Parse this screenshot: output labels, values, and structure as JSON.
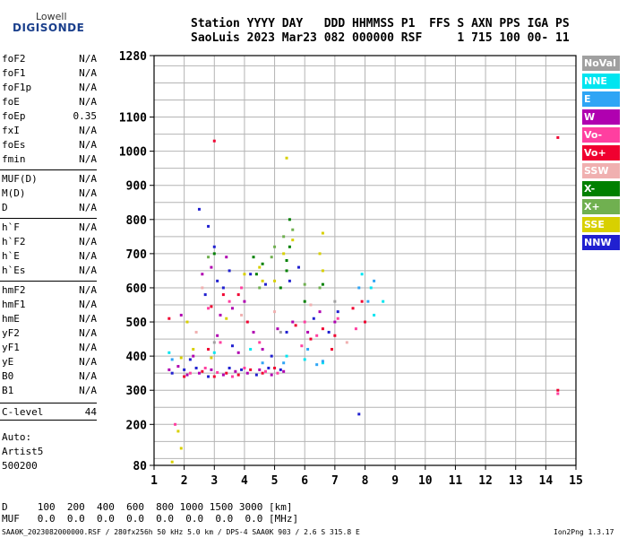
{
  "logo": {
    "line1": "Lowell",
    "line2": "DIGISONDE"
  },
  "header": {
    "line1": "Station YYYY DAY   DDD HHMMSS P1  FFS S AXN PPS IGA PS",
    "line2": "SaoLuis 2023 Mar23 082 000000 RSF     1 715 100 00- 11"
  },
  "params": [
    {
      "label": "foF2",
      "value": "N/A"
    },
    {
      "label": "foF1",
      "value": "N/A"
    },
    {
      "label": "foF1p",
      "value": "N/A"
    },
    {
      "label": "foE",
      "value": "N/A"
    },
    {
      "label": "foEp",
      "value": "0.35"
    },
    {
      "label": "fxI",
      "value": "N/A"
    },
    {
      "label": "foEs",
      "value": "N/A"
    },
    {
      "label": "fmin",
      "value": "N/A"
    },
    {
      "label": "MUF(D)",
      "value": "N/A"
    },
    {
      "label": "M(D)",
      "value": "N/A"
    },
    {
      "label": "D",
      "value": "N/A"
    },
    {
      "label": "h`F",
      "value": "N/A"
    },
    {
      "label": "h`F2",
      "value": "N/A"
    },
    {
      "label": "h`E",
      "value": "N/A"
    },
    {
      "label": "h`Es",
      "value": "N/A"
    },
    {
      "label": "hmF2",
      "value": "N/A"
    },
    {
      "label": "hmF1",
      "value": "N/A"
    },
    {
      "label": "hmE",
      "value": "N/A"
    },
    {
      "label": "yF2",
      "value": "N/A"
    },
    {
      "label": "yF1",
      "value": "N/A"
    },
    {
      "label": "yE",
      "value": "N/A"
    },
    {
      "label": "B0",
      "value": "N/A"
    },
    {
      "label": "B1",
      "value": "N/A"
    },
    {
      "label": "C-level",
      "value": "44"
    }
  ],
  "autoscale": {
    "line1": "Auto:",
    "line2": "Artist5",
    "line3": "500200"
  },
  "legend": [
    {
      "label": "NoVal",
      "color": "#a0a0a0"
    },
    {
      "label": "NNE",
      "color": "#00e5f0"
    },
    {
      "label": "E",
      "color": "#2fa5f5"
    },
    {
      "label": "W",
      "color": "#b000b0"
    },
    {
      "label": "Vo-",
      "color": "#ff3fa0"
    },
    {
      "label": "Vo+",
      "color": "#f00030"
    },
    {
      "label": "SSW",
      "color": "#f0b0b0"
    },
    {
      "label": "X-",
      "color": "#008000"
    },
    {
      "label": "X+",
      "color": "#70b050"
    },
    {
      "label": "SSE",
      "color": "#d8d000"
    },
    {
      "label": "NNW",
      "color": "#2020d0"
    }
  ],
  "footer": {
    "d_row": "D     100  200  400  600  800 1000 1500 3000 [km]",
    "muf_row": "MUF   0.0  0.0  0.0  0.0  0.0  0.0  0.0  0.0 [MHz]",
    "file_info": "SAA0K_2023082000000.RSF / 280fx256h 50 kHz 5.0 km / DPS-4 SAA0K 903 / 2.6 S 315.8 E",
    "version": "Ion2Png 1.3.17"
  },
  "chart_data": {
    "type": "scatter",
    "title": "",
    "xlabel": "",
    "ylabel": "",
    "xlim": [
      1,
      15
    ],
    "ylim": [
      80,
      1280
    ],
    "x_ticks": [
      1,
      2,
      3,
      4,
      5,
      6,
      7,
      8,
      9,
      10,
      11,
      12,
      13,
      14,
      15
    ],
    "y_ticks": [
      80,
      200,
      300,
      400,
      500,
      600,
      700,
      800,
      900,
      1000,
      1100,
      1280
    ],
    "grid": true,
    "legend_position": "right",
    "series": [
      {
        "color": "#b000b0",
        "points": [
          [
            1.5,
            360
          ],
          [
            1.8,
            370
          ],
          [
            2.1,
            345
          ],
          [
            2.5,
            350
          ],
          [
            2.9,
            360
          ],
          [
            3.3,
            345
          ],
          [
            3.7,
            355
          ],
          [
            4.1,
            350
          ],
          [
            4.5,
            360
          ],
          [
            4.9,
            345
          ],
          [
            5.3,
            355
          ],
          [
            3.2,
            520
          ],
          [
            3.6,
            540
          ],
          [
            4.0,
            560
          ],
          [
            2.6,
            640
          ],
          [
            2.9,
            660
          ],
          [
            3.4,
            690
          ],
          [
            5.1,
            480
          ],
          [
            5.6,
            500
          ],
          [
            6.1,
            470
          ],
          [
            6.5,
            530
          ],
          [
            7.0,
            500
          ],
          [
            2.3,
            400
          ],
          [
            3.8,
            410
          ],
          [
            4.6,
            420
          ],
          [
            3.1,
            460
          ],
          [
            4.3,
            470
          ],
          [
            1.9,
            520
          ]
        ]
      },
      {
        "color": "#2020d0",
        "points": [
          [
            1.6,
            350
          ],
          [
            2.0,
            360
          ],
          [
            2.4,
            365
          ],
          [
            2.8,
            340
          ],
          [
            3.5,
            365
          ],
          [
            3.9,
            360
          ],
          [
            4.4,
            345
          ],
          [
            4.8,
            365
          ],
          [
            5.2,
            360
          ],
          [
            2.7,
            580
          ],
          [
            3.3,
            600
          ],
          [
            3.0,
            720
          ],
          [
            2.8,
            780
          ],
          [
            3.1,
            620
          ],
          [
            4.2,
            640
          ],
          [
            4.7,
            610
          ],
          [
            5.5,
            620
          ],
          [
            5.8,
            660
          ],
          [
            6.3,
            510
          ],
          [
            6.8,
            470
          ],
          [
            7.1,
            530
          ],
          [
            7.8,
            230
          ],
          [
            2.2,
            390
          ],
          [
            3.6,
            430
          ],
          [
            4.9,
            400
          ],
          [
            5.4,
            470
          ],
          [
            2.5,
            830
          ],
          [
            3.5,
            650
          ]
        ]
      },
      {
        "color": "#f00030",
        "points": [
          [
            2.0,
            340
          ],
          [
            2.6,
            355
          ],
          [
            3.0,
            340
          ],
          [
            3.4,
            350
          ],
          [
            3.8,
            345
          ],
          [
            4.2,
            360
          ],
          [
            4.6,
            350
          ],
          [
            5.0,
            365
          ],
          [
            3.3,
            580
          ],
          [
            2.9,
            545
          ],
          [
            3.8,
            580
          ],
          [
            5.7,
            490
          ],
          [
            6.2,
            450
          ],
          [
            6.6,
            480
          ],
          [
            7.0,
            460
          ],
          [
            7.6,
            540
          ],
          [
            7.9,
            560
          ],
          [
            8.0,
            500
          ],
          [
            14.4,
            1040
          ],
          [
            14.4,
            300
          ],
          [
            1.5,
            510
          ],
          [
            4.1,
            500
          ],
          [
            2.8,
            420
          ],
          [
            3.0,
            1030
          ],
          [
            6.9,
            420
          ]
        ]
      },
      {
        "color": "#ff3fa0",
        "points": [
          [
            2.2,
            350
          ],
          [
            2.7,
            365
          ],
          [
            3.1,
            352
          ],
          [
            3.6,
            340
          ],
          [
            4.0,
            365
          ],
          [
            4.7,
            355
          ],
          [
            5.1,
            350
          ],
          [
            2.8,
            540
          ],
          [
            3.5,
            560
          ],
          [
            3.9,
            600
          ],
          [
            6.0,
            500
          ],
          [
            6.4,
            460
          ],
          [
            7.1,
            510
          ],
          [
            7.7,
            480
          ],
          [
            1.7,
            200
          ],
          [
            14.4,
            290
          ],
          [
            3.2,
            440
          ],
          [
            4.5,
            440
          ],
          [
            5.9,
            430
          ]
        ]
      },
      {
        "color": "#d8d000",
        "points": [
          [
            1.9,
            395
          ],
          [
            2.3,
            420
          ],
          [
            2.9,
            395
          ],
          [
            1.8,
            180
          ],
          [
            1.9,
            130
          ],
          [
            1.6,
            90
          ],
          [
            4.0,
            640
          ],
          [
            4.5,
            660
          ],
          [
            5.0,
            620
          ],
          [
            5.3,
            700
          ],
          [
            5.6,
            740
          ],
          [
            6.6,
            760
          ],
          [
            6.6,
            650
          ],
          [
            3.4,
            510
          ],
          [
            4.6,
            620
          ],
          [
            5.4,
            980
          ],
          [
            6.5,
            700
          ],
          [
            2.1,
            500
          ]
        ]
      },
      {
        "color": "#008000",
        "points": [
          [
            5.5,
            720
          ],
          [
            5.5,
            800
          ],
          [
            5.4,
            680
          ],
          [
            4.6,
            670
          ],
          [
            4.4,
            640
          ],
          [
            5.2,
            600
          ],
          [
            6.0,
            560
          ],
          [
            6.6,
            610
          ],
          [
            3.0,
            700
          ],
          [
            5.4,
            650
          ],
          [
            4.3,
            690
          ]
        ]
      },
      {
        "color": "#70b050",
        "points": [
          [
            5.6,
            770
          ],
          [
            5.3,
            750
          ],
          [
            4.9,
            690
          ],
          [
            4.5,
            600
          ],
          [
            6.5,
            600
          ],
          [
            2.8,
            690
          ],
          [
            6.0,
            610
          ],
          [
            5.0,
            720
          ]
        ]
      },
      {
        "color": "#00e5f0",
        "points": [
          [
            1.5,
            410
          ],
          [
            3.0,
            410
          ],
          [
            4.2,
            420
          ],
          [
            6.6,
            380
          ],
          [
            8.2,
            600
          ],
          [
            8.3,
            520
          ],
          [
            8.6,
            560
          ],
          [
            5.4,
            400
          ],
          [
            7.9,
            640
          ],
          [
            6.0,
            390
          ]
        ]
      },
      {
        "color": "#2fa5f5",
        "points": [
          [
            1.6,
            390
          ],
          [
            6.4,
            375
          ],
          [
            6.6,
            385
          ],
          [
            8.1,
            560
          ],
          [
            8.3,
            620
          ],
          [
            4.6,
            380
          ],
          [
            5.3,
            380
          ],
          [
            7.8,
            600
          ],
          [
            6.1,
            420
          ]
        ]
      },
      {
        "color": "#f0b0b0",
        "points": [
          [
            2.4,
            470
          ],
          [
            3.9,
            520
          ],
          [
            6.2,
            550
          ],
          [
            7.4,
            440
          ],
          [
            5.0,
            530
          ],
          [
            2.6,
            600
          ]
        ]
      },
      {
        "color": "#a0a0a0",
        "points": [
          [
            7.0,
            560
          ],
          [
            3.0,
            440
          ],
          [
            5.2,
            470
          ]
        ]
      }
    ]
  }
}
